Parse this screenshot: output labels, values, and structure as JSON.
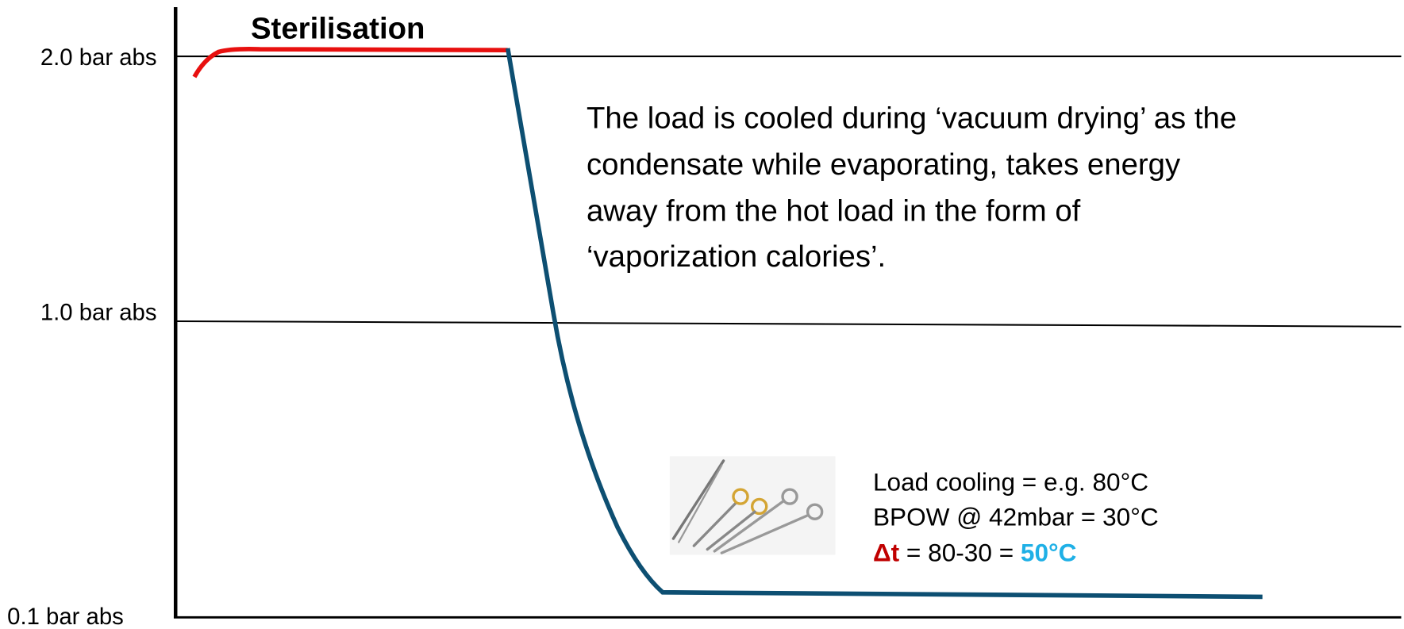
{
  "title": "Sterilisation",
  "axis_labels": [
    "2.0 bar abs",
    "1.0 bar abs",
    "0.1 bar abs"
  ],
  "description": [
    "The load is cooled during ‘vacuum drying’ as the",
    "condensate while evaporating, takes energy",
    "away from the hot load in the form of",
    "‘vaporization calories’."
  ],
  "calc": {
    "line1": "Load cooling = e.g. 80°C",
    "line2": "BPOW @ 42mbar = 30°C",
    "delta_symbol": "Δt",
    "delta_expr": " = 80-30 = ",
    "delta_result": "50°C"
  }
}
